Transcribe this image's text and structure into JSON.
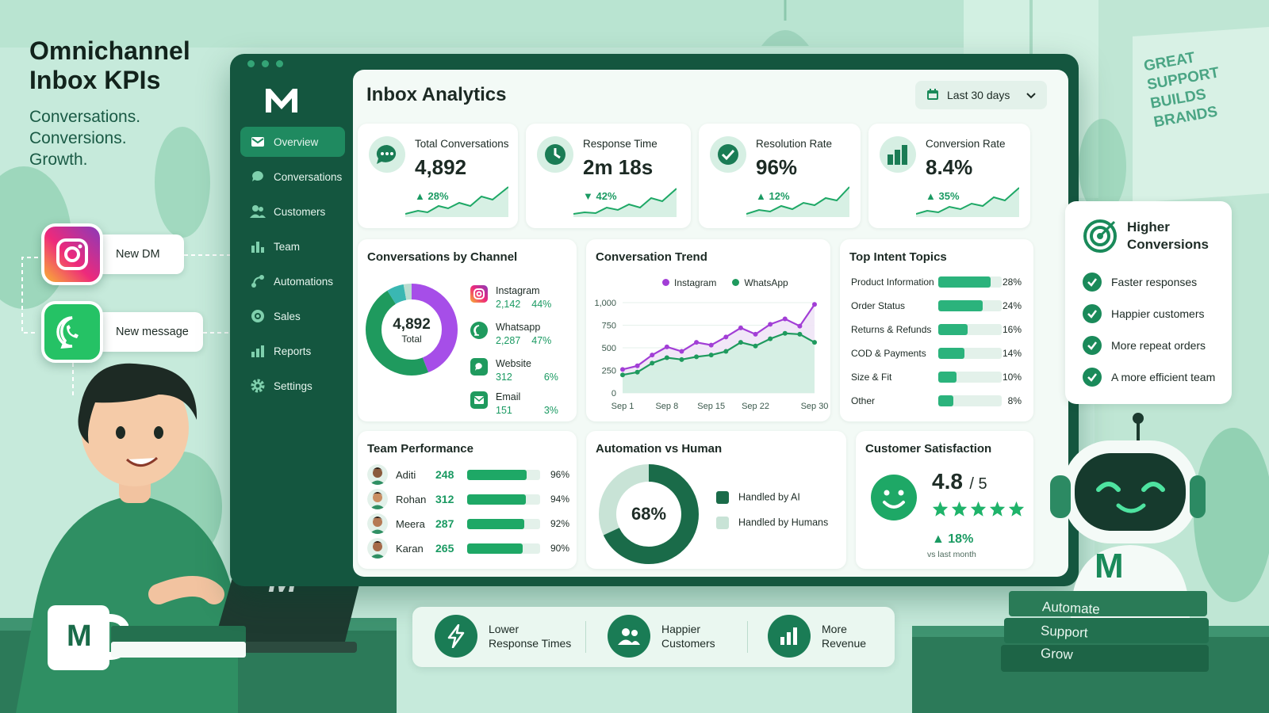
{
  "hero": {
    "title_line1": "Omnichannel",
    "title_line2": "Inbox KPIs",
    "sub_line1": "Conversations.",
    "sub_line2": "Conversions.",
    "sub_line3": "Growth."
  },
  "notifications": [
    {
      "app": "instagram-icon",
      "text": "New DM"
    },
    {
      "app": "whatsapp-icon",
      "text": "New message"
    }
  ],
  "poster": {
    "lines": [
      "GREAT",
      "SUPPORT",
      "BUILDS",
      "BRANDS"
    ]
  },
  "app": {
    "logo": "M",
    "sidebar": [
      {
        "label": "Overview",
        "icon": "mail-icon",
        "active": true
      },
      {
        "label": "Conversations",
        "icon": "chat-icon"
      },
      {
        "label": "Customers",
        "icon": "users-icon"
      },
      {
        "label": "Team",
        "icon": "bar-chart-icon"
      },
      {
        "label": "Automations",
        "icon": "automation-icon"
      },
      {
        "label": "Sales",
        "icon": "target-icon"
      },
      {
        "label": "Reports",
        "icon": "reports-icon"
      },
      {
        "label": "Settings",
        "icon": "gear-icon"
      }
    ],
    "page_title": "Inbox Analytics",
    "date_range": "Last 30 days",
    "kpis": [
      {
        "label": "Total Conversations",
        "value": "4,892",
        "delta": "28%",
        "direction": "up",
        "icon": "chat-bubble-icon"
      },
      {
        "label": "Response Time",
        "value": "2m 18s",
        "delta": "42%",
        "direction": "down",
        "icon": "clock-icon"
      },
      {
        "label": "Resolution Rate",
        "value": "96%",
        "delta": "12%",
        "direction": "up",
        "icon": "check-circle-icon"
      },
      {
        "label": "Conversion Rate",
        "value": "8.4%",
        "delta": "35%",
        "direction": "up",
        "icon": "bar-chart-icon"
      }
    ],
    "channels": {
      "title": "Conversations by Channel",
      "total_value": "4,892",
      "total_label": "Total",
      "items": [
        {
          "name": "Instagram",
          "count": "2,142",
          "pct": "44%",
          "share": 44,
          "color": "#a64ee8",
          "icon": "instagram-icon"
        },
        {
          "name": "Whatsapp",
          "count": "2,287",
          "pct": "47%",
          "share": 47,
          "color": "#1f9a5e",
          "icon": "whatsapp-icon"
        },
        {
          "name": "Website",
          "count": "312",
          "pct": "6%",
          "share": 6,
          "color": "#3ab7b2",
          "icon": "web-chat-icon"
        },
        {
          "name": "Email",
          "count": "151",
          "pct": "3%",
          "share": 3,
          "color": "#b9ddd0",
          "icon": "email-icon"
        }
      ]
    },
    "trend": {
      "title": "Conversation Trend",
      "chart_data": {
        "type": "line",
        "x": [
          "Sep 1",
          "Sep 4",
          "Sep 6",
          "Sep 8",
          "Sep 10",
          "Sep 12",
          "Sep 15",
          "Sep 17",
          "Sep 19",
          "Sep 22",
          "Sep 24",
          "Sep 26",
          "Sep 28",
          "Sep 30"
        ],
        "xticks": [
          "Sep 1",
          "Sep 8",
          "Sep 15",
          "Sep 22",
          "Sep 30"
        ],
        "yticks": [
          "0",
          "250",
          "500",
          "750",
          "1,000"
        ],
        "ylim": [
          0,
          1000
        ],
        "series": [
          {
            "name": "Instagram",
            "color": "#a23ed6",
            "values": [
              260,
              300,
              420,
              510,
              460,
              560,
              530,
              620,
              720,
              650,
              760,
              820,
              740,
              980
            ]
          },
          {
            "name": "WhatsApp",
            "color": "#1f9a5e",
            "values": [
              200,
              230,
              330,
              390,
              370,
              400,
              420,
              460,
              560,
              520,
              600,
              660,
              650,
              560
            ]
          }
        ],
        "legend": "top"
      }
    },
    "topics": {
      "title": "Top Intent Topics",
      "items": [
        {
          "name": "Product Information",
          "pct": "28%",
          "value": 28
        },
        {
          "name": "Order Status",
          "pct": "24%",
          "value": 24
        },
        {
          "name": "Returns & Refunds",
          "pct": "16%",
          "value": 16
        },
        {
          "name": "COD & Payments",
          "pct": "14%",
          "value": 14
        },
        {
          "name": "Size & Fit",
          "pct": "10%",
          "value": 10
        },
        {
          "name": "Other",
          "pct": "8%",
          "value": 8
        }
      ]
    },
    "team": {
      "title": "Team Performance",
      "members": [
        {
          "name": "Aditi",
          "score": "248",
          "pct": "96%",
          "value": 96
        },
        {
          "name": "Rohan",
          "score": "312",
          "pct": "94%",
          "value": 94
        },
        {
          "name": "Meera",
          "score": "287",
          "pct": "92%",
          "value": 92
        },
        {
          "name": "Karan",
          "score": "265",
          "pct": "90%",
          "value": 90
        }
      ]
    },
    "automation": {
      "title": "Automation vs Human",
      "value_label": "68%",
      "ai_share": 68,
      "legend_ai": "Handled by AI",
      "legend_human": "Handled by Humans",
      "color_ai": "#1a6b49",
      "color_human": "#c8e3d6"
    },
    "csat": {
      "title": "Customer Satisfaction",
      "score": "4.8",
      "scale": "/ 5",
      "stars": 5,
      "delta": "18%",
      "delta_note": "vs last month"
    }
  },
  "benefits": {
    "title_line1": "Higher",
    "title_line2": "Conversions",
    "items": [
      "Faster responses",
      "Happier customers",
      "More repeat orders",
      "A more efficient team"
    ]
  },
  "bottom_bar": [
    {
      "line1": "Lower",
      "line2": "Response Times",
      "icon": "lightning-icon"
    },
    {
      "line1": "Happier",
      "line2": "Customers",
      "icon": "users-icon"
    },
    {
      "line1": "More",
      "line2": "Revenue",
      "icon": "bar-chart-icon"
    }
  ],
  "books": [
    "Automate",
    "Support",
    "Grow"
  ],
  "mug_logo": "M",
  "laptop_logo": "M",
  "robot_logo": "M"
}
